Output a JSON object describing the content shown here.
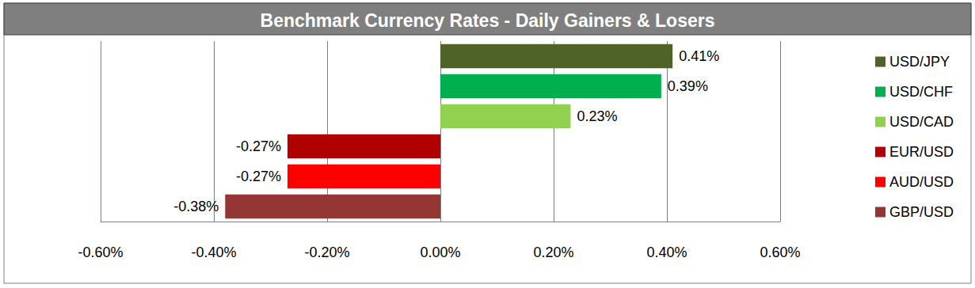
{
  "chart_data": {
    "type": "bar",
    "title": "Benchmark Currency Rates - Daily Gainers & Losers",
    "orientation": "horizontal",
    "categories": [
      "USD/JPY",
      "USD/CHF",
      "USD/CAD",
      "EUR/USD",
      "AUD/USD",
      "GBP/USD"
    ],
    "values": [
      0.41,
      0.39,
      0.23,
      -0.27,
      -0.27,
      -0.38
    ],
    "value_labels": [
      "0.41%",
      "0.39%",
      "0.23%",
      "-0.27%",
      "-0.27%",
      "-0.38%"
    ],
    "colors": [
      "#4f6228",
      "#00b050",
      "#92d050",
      "#b00000",
      "#ff0000",
      "#943634"
    ],
    "xlim": [
      -0.6,
      0.6
    ],
    "xticks": [
      {
        "value": -0.6,
        "label": "-0.60%"
      },
      {
        "value": -0.4,
        "label": "-0.40%"
      },
      {
        "value": -0.2,
        "label": "-0.20%"
      },
      {
        "value": 0,
        "label": "0.00%"
      },
      {
        "value": 0.2,
        "label": "0.20%"
      },
      {
        "value": 0.4,
        "label": "0.40%"
      },
      {
        "value": 0.6,
        "label": "0.60%"
      }
    ],
    "grid": true,
    "legend": "right",
    "data_labels": true,
    "tick_labels": "x"
  }
}
